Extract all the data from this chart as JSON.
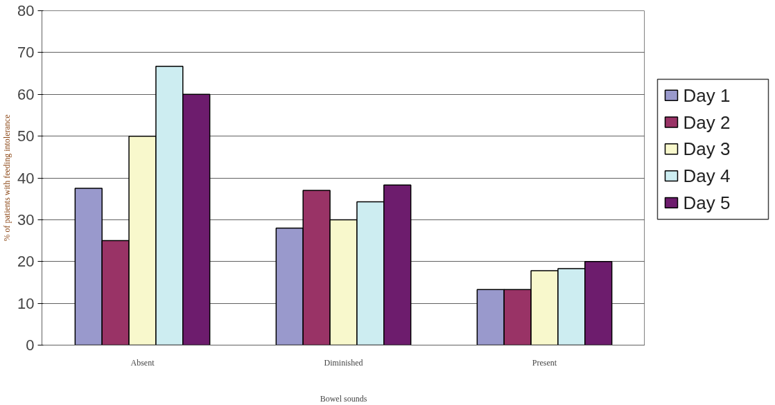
{
  "chart_data": {
    "type": "bar",
    "xlabel": "Bowel sounds",
    "ylabel": "% of patients with feeding intolerance",
    "categories": [
      "Absent",
      "Diminished",
      "Present"
    ],
    "series": [
      {
        "name": "Day 1",
        "color": "#9999cc",
        "values": [
          37.5,
          28,
          13.3
        ]
      },
      {
        "name": "Day 2",
        "color": "#993366",
        "values": [
          25,
          37,
          13.3
        ]
      },
      {
        "name": "Day 3",
        "color": "#f8f8cc",
        "values": [
          50,
          30,
          17.8
        ]
      },
      {
        "name": "Day 4",
        "color": "#cdedf1",
        "values": [
          66.7,
          34.3,
          18.3
        ]
      },
      {
        "name": "Day 5",
        "color": "#6d1c6d",
        "values": [
          60,
          38.3,
          20
        ]
      }
    ],
    "ylim": [
      0,
      80
    ],
    "yticks": [
      0,
      10,
      20,
      30,
      40,
      50,
      60,
      70,
      80
    ],
    "grid": "y",
    "legend": "right"
  }
}
